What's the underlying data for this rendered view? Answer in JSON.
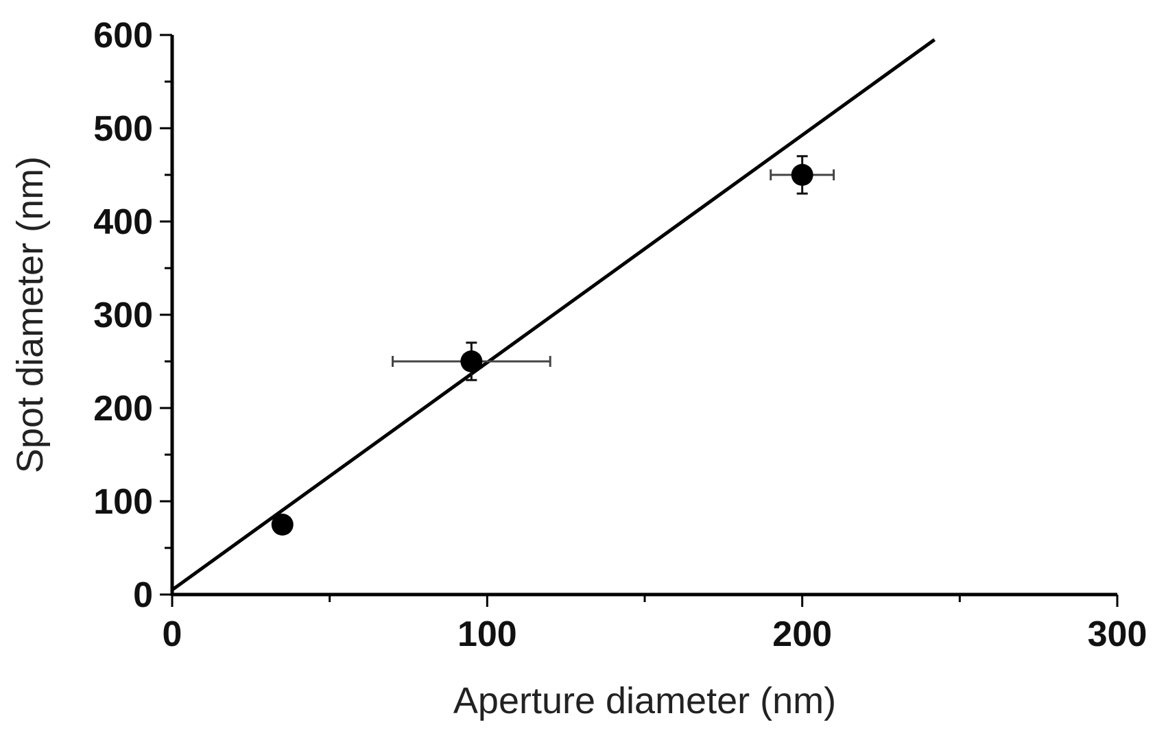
{
  "chart_data": {
    "type": "scatter",
    "xlabel": "Aperture diameter (nm)",
    "ylabel": "Spot diameter (nm)",
    "xlim": [
      0,
      300
    ],
    "ylim": [
      0,
      600
    ],
    "x_ticks": [
      0,
      100,
      200,
      300
    ],
    "y_ticks": [
      0,
      100,
      200,
      300,
      400,
      500,
      600
    ],
    "x_minor_step": 50,
    "y_minor_step": 50,
    "grid": false,
    "points": [
      {
        "x": 35,
        "y": 75,
        "x_err": 0,
        "y_err": 0
      },
      {
        "x": 95,
        "y": 250,
        "x_err": 25,
        "y_err": 20
      },
      {
        "x": 200,
        "y": 450,
        "x_err": 10,
        "y_err": 20
      }
    ],
    "fit_line": {
      "x": [
        0,
        242
      ],
      "y": [
        5,
        595
      ]
    },
    "colors": {
      "marker": "#000000",
      "line": "#000000",
      "error_bar": "#444444"
    }
  }
}
